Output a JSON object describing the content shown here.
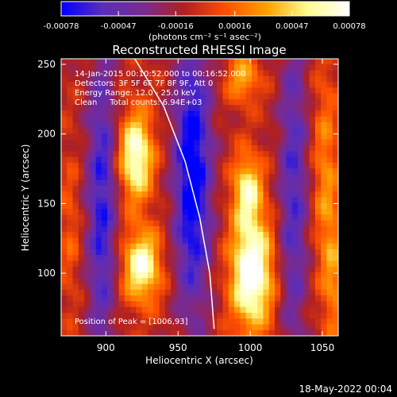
{
  "chart_data": {
    "type": "heatmap",
    "title": "Reconstructed RHESSI Image",
    "xlabel": "Heliocentric X (arcsec)",
    "ylabel": "Heliocentric Y (arcsec)",
    "xlim": [
      869,
      1061
    ],
    "ylim": [
      55,
      254
    ],
    "x_ticks": [
      "900",
      "950",
      "1000",
      "1050"
    ],
    "x_tick_values": [
      900,
      950,
      1000,
      1050
    ],
    "y_ticks": [
      "100",
      "150",
      "200",
      "250"
    ],
    "y_tick_values": [
      100,
      150,
      200,
      250
    ],
    "colorbar": {
      "ticks": [
        "-0.00078",
        "-0.00047",
        "-0.00016",
        "0.00016",
        "0.00047",
        "0.00078"
      ],
      "tick_values": [
        -0.00078,
        -0.00047,
        -0.00016,
        0.00016,
        0.00047,
        0.00078
      ],
      "units": "(photons cm⁻² s⁻¹ asec⁻²)",
      "range": [
        -0.00078,
        0.00078
      ],
      "colors": [
        "#0000ff",
        "#5a2dbb",
        "#7a2a90",
        "#b02020",
        "#ff5000",
        "#ffa000",
        "#ffff90",
        "#ffffff"
      ]
    },
    "annotations": [
      "14-Jan-2015 00:10:52.000 to 00:16:52.000",
      "Detectors: 3F 5F 6F 7F 8F 9F, Att 0",
      "Energy Range: 12.0 - 25.0 keV",
      "Clean     Total counts: 6.94E+03",
      "Position of Peak = [1006,93]"
    ],
    "peak": {
      "x": 1006,
      "y": 93
    },
    "limb_curve": {
      "x": [
        920,
        940,
        955,
        965,
        972,
        975
      ],
      "y": [
        254,
        220,
        180,
        140,
        100,
        60
      ]
    },
    "sources": [
      {
        "x": 921,
        "y": 184,
        "sigma_x": 8,
        "sigma_y": 22,
        "amp": 0.00085
      },
      {
        "x": 925,
        "y": 105,
        "sigma_x": 9,
        "sigma_y": 18,
        "amp": 0.0008
      },
      {
        "x": 1001,
        "y": 100,
        "sigma_x": 10,
        "sigma_y": 28,
        "amp": 0.001
      },
      {
        "x": 998,
        "y": 160,
        "sigma_x": 7,
        "sigma_y": 18,
        "amp": 0.00065
      },
      {
        "x": 995,
        "y": 240,
        "sigma_x": 8,
        "sigma_y": 12,
        "amp": 0.00045
      },
      {
        "x": 1052,
        "y": 170,
        "sigma_x": 6,
        "sigma_y": 55,
        "amp": 0.00035
      },
      {
        "x": 1058,
        "y": 95,
        "sigma_x": 5,
        "sigma_y": 35,
        "amp": 0.0003
      },
      {
        "x": 875,
        "y": 130,
        "sigma_x": 5,
        "sigma_y": 40,
        "amp": 0.0002
      },
      {
        "x": 960,
        "y": 170,
        "sigma_x": 9,
        "sigma_y": 70,
        "amp": -0.0008
      },
      {
        "x": 897,
        "y": 150,
        "sigma_x": 7,
        "sigma_y": 80,
        "amp": -0.0006
      },
      {
        "x": 1030,
        "y": 160,
        "sigma_x": 7,
        "sigma_y": 90,
        "amp": -0.0005
      }
    ]
  },
  "footer": {
    "date": "18-May-2022 00:04"
  }
}
